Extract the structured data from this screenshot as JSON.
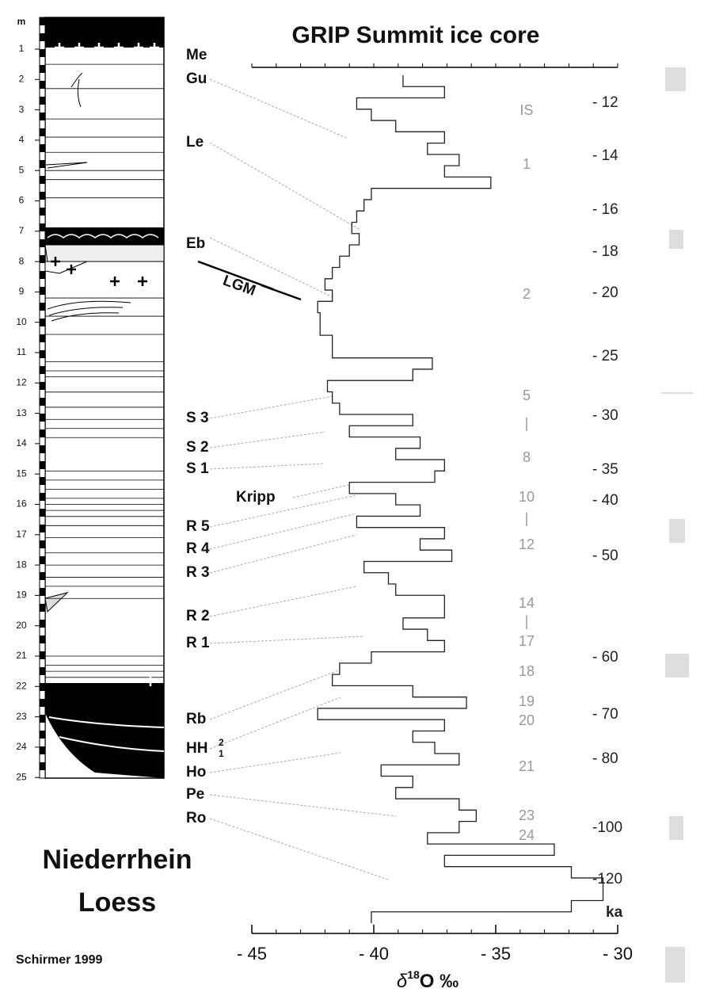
{
  "title": "GRIP Summit ice core",
  "loess": {
    "title_lines": [
      "Niederrhein",
      "Loess"
    ],
    "depth_unit": "m",
    "depth_ticks": [
      1,
      2,
      3,
      4,
      5,
      6,
      7,
      8,
      9,
      10,
      11,
      12,
      13,
      14,
      15,
      16,
      17,
      18,
      19,
      20,
      21,
      22,
      23,
      24,
      25
    ],
    "units": [
      "Me",
      "Gu",
      "Le",
      "Eb",
      "LGM",
      "S 3",
      "S 2",
      "S 1",
      "Kripp",
      "R 5",
      "R 4",
      "R 3",
      "R 2",
      "R 1",
      "Rb",
      "HH",
      "Ho",
      "Pe",
      "Ro"
    ],
    "hh_indices": [
      "2",
      "1"
    ]
  },
  "credit": "Schirmer 1999",
  "age_ticks": [
    "- 12",
    "- 14",
    "- 16",
    "- 18",
    "- 20",
    "- 25",
    "- 30",
    "- 35",
    "- 40",
    "- 50",
    "- 60",
    "- 70",
    "- 80",
    "-100",
    "-120"
  ],
  "age_unit": "ka",
  "interstadials": [
    "IS",
    "1",
    "2",
    "5",
    "|",
    "8",
    "10",
    "|",
    "12",
    "14",
    "|",
    "17",
    "18",
    "19",
    "20",
    "21",
    "23",
    "24"
  ],
  "chart_data": {
    "type": "line",
    "xlim": [
      -45,
      -30
    ],
    "xticks": [
      {
        "value": -45,
        "label": "- 45"
      },
      {
        "value": -40,
        "label": "- 40"
      },
      {
        "value": -35,
        "label": "- 35"
      },
      {
        "value": -30,
        "label": "- 30"
      }
    ],
    "x_label": {
      "symbol": "δ",
      "superscript": "18",
      "text": "O ‰"
    },
    "color": "#222222",
    "values": [
      -38.8,
      -37.1,
      -40.7,
      -40.1,
      -39.1,
      -37.1,
      -37.8,
      -36.5,
      -37.1,
      -35.2,
      -40.1,
      -40.4,
      -40.7,
      -40.9,
      -40.6,
      -41.0,
      -41.4,
      -41.7,
      -42.0,
      -41.7,
      -42.3,
      -42.2,
      -42.2,
      -41.7,
      -41.7,
      -37.6,
      -38.4,
      -41.9,
      -41.7,
      -41.4,
      -38.4,
      -41.0,
      -38.1,
      -39.1,
      -37.1,
      -37.5,
      -41.0,
      -39.1,
      -38.1,
      -40.7,
      -37.1,
      -38.1,
      -36.8,
      -40.4,
      -39.4,
      -39.1,
      -37.1,
      -37.1,
      -38.8,
      -37.8,
      -37.1,
      -40.1,
      -41.4,
      -41.7,
      -38.4,
      -36.2,
      -42.3,
      -37.1,
      -38.4,
      -37.5,
      -36.5,
      -39.7,
      -38.4,
      -39.1,
      -36.5,
      -35.8,
      -36.5,
      -37.8,
      -32.6,
      -37.1,
      -31.9,
      -30.6,
      -30.6,
      -31.9,
      -40.1
    ]
  }
}
